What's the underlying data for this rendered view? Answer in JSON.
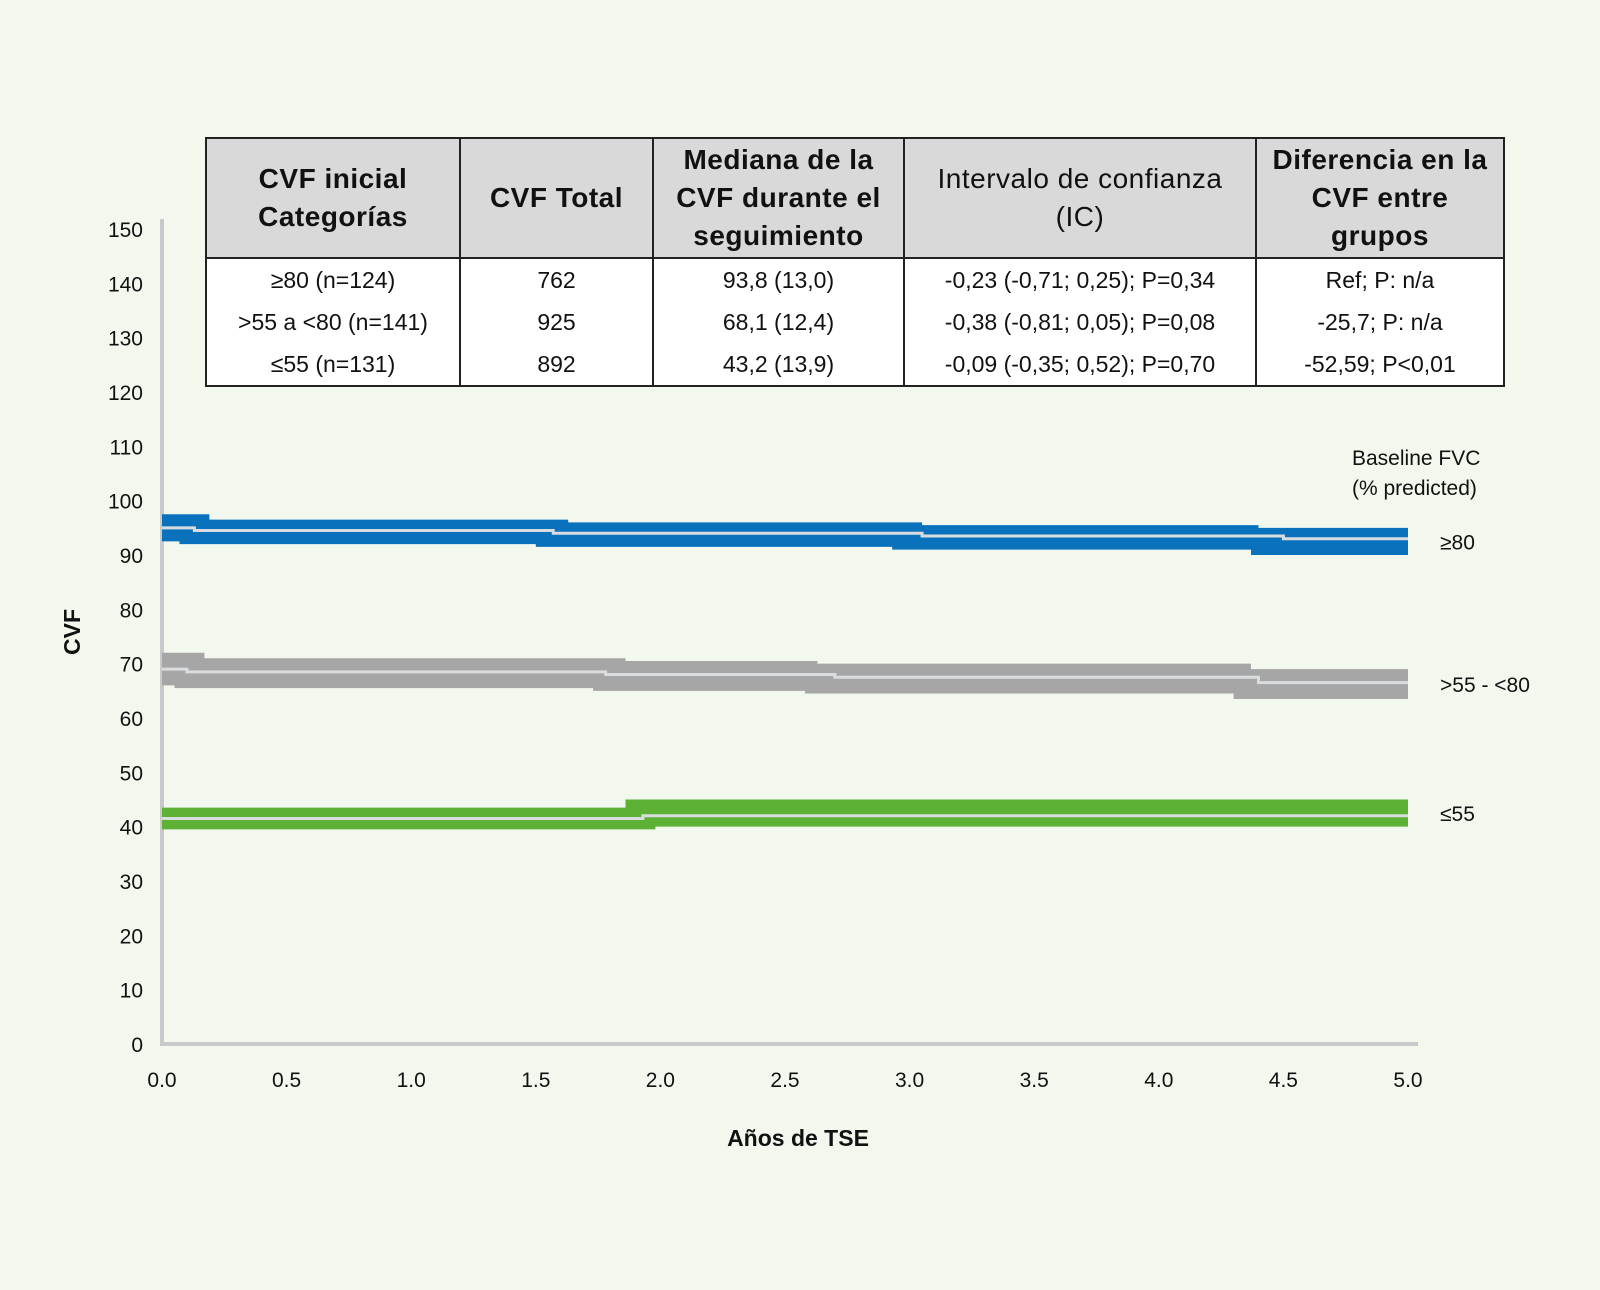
{
  "table": {
    "headers": [
      "CVF inicial\nCategorías",
      "CVF Total",
      "Mediana de la\nCVF durante el\nseguimiento",
      "Intervalo de confianza\n(IC)",
      "Diferencia en la\nCVF entre grupos"
    ],
    "rows": [
      [
        "≥80 (n=124)",
        "762",
        "93,8 (13,0)",
        "-0,23 (-0,71; 0,25); P=0,34",
        "Ref; P: n/a"
      ],
      [
        ">55 a <80 (n=141)",
        "925",
        "68,1 (12,4)",
        "-0,38 (-0,81; 0,05); P=0,08",
        "-25,7; P: n/a"
      ],
      [
        "≤55 (n=131)",
        "892",
        "43,2 (13,9)",
        "-0,09 (-0,35; 0,52); P=0,70",
        "-52,59; P<0,01"
      ]
    ]
  },
  "chart_data": {
    "type": "line",
    "title": "",
    "xlabel": "Años de TSE",
    "ylabel": "CVF",
    "xlim": [
      0,
      5
    ],
    "ylim": [
      0,
      150
    ],
    "x_ticks": [
      "0.0",
      "0.5",
      "1.0",
      "1.5",
      "2.0",
      "2.5",
      "3.0",
      "3.5",
      "4.0",
      "4.5",
      "5.0"
    ],
    "y_ticks": [
      "0",
      "10",
      "20",
      "30",
      "40",
      "50",
      "60",
      "70",
      "80",
      "90",
      "100",
      "110",
      "120",
      "130",
      "140",
      "150"
    ],
    "legend_title": "Baseline FVC\n(% predicted)",
    "legend_placement": "right",
    "series": [
      {
        "name": "≥80",
        "color": "#0a72bd",
        "mean": [
          [
            0,
            95
          ],
          [
            0.13,
            94.5
          ],
          [
            1.57,
            94
          ],
          [
            3.05,
            93.5
          ],
          [
            4.5,
            93
          ]
        ],
        "upper": [
          [
            0,
            97.5
          ],
          [
            0.19,
            96.5
          ],
          [
            1.63,
            96
          ],
          [
            3.05,
            95.5
          ],
          [
            4.4,
            95
          ]
        ],
        "lower": [
          [
            0,
            92.5
          ],
          [
            0.07,
            92
          ],
          [
            1.5,
            91.5
          ],
          [
            2.93,
            91
          ],
          [
            4.37,
            90
          ]
        ]
      },
      {
        "name": ">55 - <80",
        "color": "#a6a6a6",
        "mean": [
          [
            0,
            69
          ],
          [
            0.1,
            68.5
          ],
          [
            1.78,
            68
          ],
          [
            2.7,
            67.5
          ],
          [
            4.4,
            66.5
          ]
        ],
        "upper": [
          [
            0,
            72
          ],
          [
            0.17,
            71
          ],
          [
            1.86,
            70.5
          ],
          [
            2.63,
            70
          ],
          [
            4.37,
            69
          ]
        ],
        "lower": [
          [
            0,
            66
          ],
          [
            0.05,
            65.5
          ],
          [
            1.73,
            65
          ],
          [
            2.58,
            64.5
          ],
          [
            4.3,
            63.5
          ]
        ]
      },
      {
        "name": "≤55",
        "color": "#5db236",
        "mean": [
          [
            0,
            41.5
          ],
          [
            1.93,
            42
          ]
        ],
        "upper": [
          [
            0,
            43.5
          ],
          [
            1.86,
            45
          ]
        ],
        "lower": [
          [
            0,
            39.5
          ],
          [
            1.98,
            40
          ]
        ]
      }
    ]
  }
}
